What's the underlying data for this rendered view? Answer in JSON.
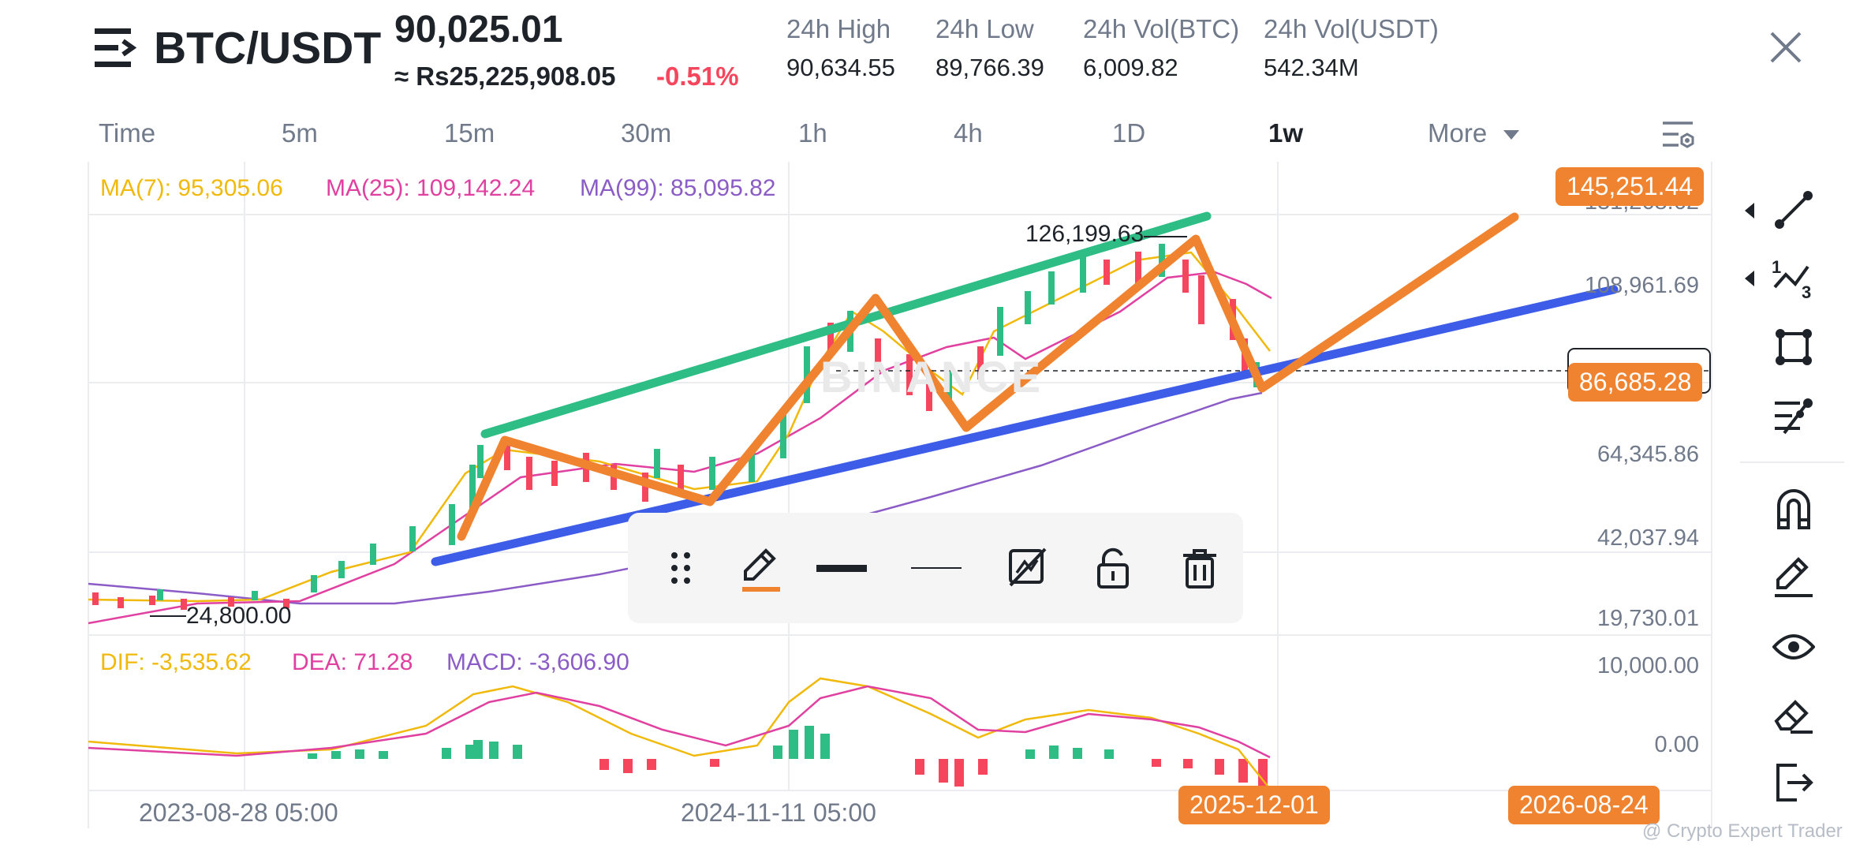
{
  "header": {
    "pair": "BTC/USDT",
    "last_price": "90,025.01",
    "fiat_price": "≈ Rs25,225,908.05",
    "change": "-0.51%",
    "stats": [
      {
        "label": "24h High",
        "value": "90,634.55"
      },
      {
        "label": "24h Low",
        "value": "89,766.39"
      },
      {
        "label": "24h Vol(BTC)",
        "value": "6,009.82"
      },
      {
        "label": "24h Vol(USDT)",
        "value": "542.34M"
      }
    ]
  },
  "timeframes": [
    "Time",
    "5m",
    "15m",
    "30m",
    "1h",
    "4h",
    "1D",
    "1w",
    "More"
  ],
  "active_timeframe": "1w",
  "ma_legend": {
    "ma7": "MA(7): 95,305.06",
    "ma25": "MA(25): 109,142.24",
    "ma99": "MA(99): 85,095.82"
  },
  "macd_legend": {
    "dif": "DIF: -3,535.62",
    "dea": "DEA: 71.28",
    "macd": "MACD: -3,606.90"
  },
  "price_axis": [
    "131,268.62",
    "108,961.69",
    "64,345.86",
    "42,037.94",
    "19,730.01"
  ],
  "macd_axis": [
    "10,000.00",
    "0.00"
  ],
  "price_tags": {
    "top": "145,251.44",
    "current": "86,685.28"
  },
  "annotations": {
    "high": "126,199.63",
    "low": "24,800.00",
    "watermark": "BINANCE"
  },
  "dates": {
    "d1": "2023-08-28 05:00",
    "d2": "2024-11-11 05:00",
    "cursor": "2025-12-01",
    "future": "2026-08-24"
  },
  "credit": "@ Crypto Expert Trader",
  "colors": {
    "up": "#2ebd85",
    "down": "#f6465d",
    "ma7": "#f0b90b",
    "ma25": "#e040a0",
    "ma99": "#8b5cc6",
    "channel_top": "#2ebd85",
    "channel_bottom": "#3d5ce8",
    "zigzag": "#f0832f"
  }
}
